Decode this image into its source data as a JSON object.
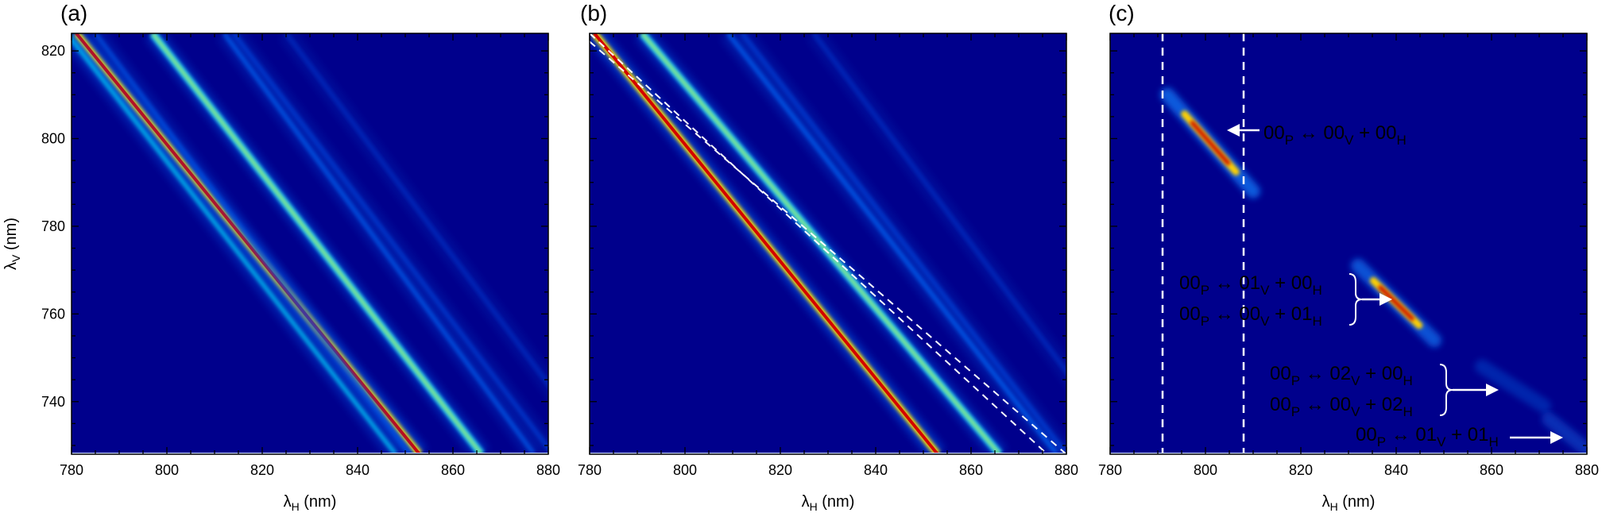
{
  "chart_data": [
    {
      "type": "heatmap",
      "panel_label": "(a)",
      "xlabel": "λ",
      "xlabel_sub": "H",
      "xlabel_unit": " (nm)",
      "ylabel": "λ",
      "ylabel_sub": "V",
      "ylabel_unit": " (nm)",
      "xlim": [
        780,
        880
      ],
      "ylim": [
        728,
        824
      ],
      "xticks": [
        780,
        800,
        820,
        840,
        860,
        880
      ],
      "yticks": [
        740,
        760,
        780,
        800,
        820
      ],
      "colormap": "jet",
      "background": "#00008c",
      "bands": [
        {
          "x_at_top": 781,
          "x_at_bottom": 853,
          "color": "#d30000",
          "intensity": 1.0
        },
        {
          "x_at_top": 779,
          "x_at_bottom": 848,
          "color": "#00a8e8",
          "intensity": 0.6
        },
        {
          "x_at_top": 797,
          "x_at_bottom": 866,
          "color": "#00c8d8",
          "intensity": 0.75
        },
        {
          "x_at_top": 785,
          "x_at_bottom": 851,
          "color": "#0050e0",
          "intensity": 0.4
        },
        {
          "x_at_top": 812,
          "x_at_bottom": 877,
          "color": "#0058e8",
          "intensity": 0.4
        },
        {
          "x_at_top": 814,
          "x_at_bottom": 881,
          "color": "#0040d8",
          "intensity": 0.3
        },
        {
          "x_at_top": 825,
          "x_at_bottom": 891,
          "color": "#0030c8",
          "intensity": 0.25
        }
      ]
    },
    {
      "type": "heatmap",
      "panel_label": "(b)",
      "xlabel": "λ",
      "xlabel_sub": "H",
      "xlabel_unit": " (nm)",
      "xlim": [
        780,
        880
      ],
      "ylim": [
        728,
        824
      ],
      "xticks": [
        780,
        800,
        820,
        840,
        860,
        880
      ],
      "yticks": [
        740,
        760,
        780,
        800,
        820
      ],
      "colormap": "jet",
      "background": "#00008c",
      "bands": [
        {
          "x_at_top": 781,
          "x_at_bottom": 853,
          "color": "#d30000",
          "intensity": 1.0
        },
        {
          "x_at_top": 791,
          "x_at_bottom": 866,
          "color": "#00c8d8",
          "intensity": 0.75
        },
        {
          "x_at_top": 809,
          "x_at_bottom": 878,
          "color": "#0058e8",
          "intensity": 0.45
        },
        {
          "x_at_top": 812,
          "x_at_bottom": 880,
          "color": "#0040d8",
          "intensity": 0.3
        },
        {
          "x_at_top": 827,
          "x_at_bottom": 893,
          "color": "#0030c8",
          "intensity": 0.25
        }
      ],
      "dashed_guides": [
        {
          "x_at_top": 780,
          "x_at_bottom": 876
        },
        {
          "x_at_top": 778,
          "x_at_bottom": 880
        }
      ]
    },
    {
      "type": "heatmap",
      "panel_label": "(c)",
      "xlabel": "λ",
      "xlabel_sub": "H",
      "xlabel_unit": " (nm)",
      "xlim": [
        780,
        880
      ],
      "ylim": [
        728,
        824
      ],
      "xticks": [
        780,
        800,
        820,
        840,
        860,
        880
      ],
      "yticks": [
        740,
        760,
        780,
        800,
        820
      ],
      "colormap": "jet",
      "background": "#00008c",
      "vertical_dashed_lines": [
        791,
        808
      ],
      "spots": [
        {
          "x1": 792,
          "y1": 810,
          "x2": 810,
          "y2": 788,
          "color": "#e04000",
          "intensity": 1.0
        },
        {
          "x1": 832,
          "y1": 771,
          "x2": 848,
          "y2": 754,
          "color": "#e06000",
          "intensity": 0.9
        },
        {
          "x1": 858,
          "y1": 748,
          "x2": 871,
          "y2": 739,
          "color": "#0050e8",
          "intensity": 0.4
        },
        {
          "x1": 872,
          "y1": 736,
          "x2": 880,
          "y2": 729,
          "color": "#0060f0",
          "intensity": 0.5
        }
      ],
      "annotations": [
        {
          "text": "00P ↔ 00V + 00H"
        },
        {
          "text": "00P ↔ 01V + 00H"
        },
        {
          "text": "00P ↔ 00V + 01H"
        },
        {
          "text": "00P ↔ 02V + 00H"
        },
        {
          "text": "00P ↔ 00V + 02H"
        },
        {
          "text": "00P ↔ 01V + 01H"
        }
      ]
    }
  ]
}
